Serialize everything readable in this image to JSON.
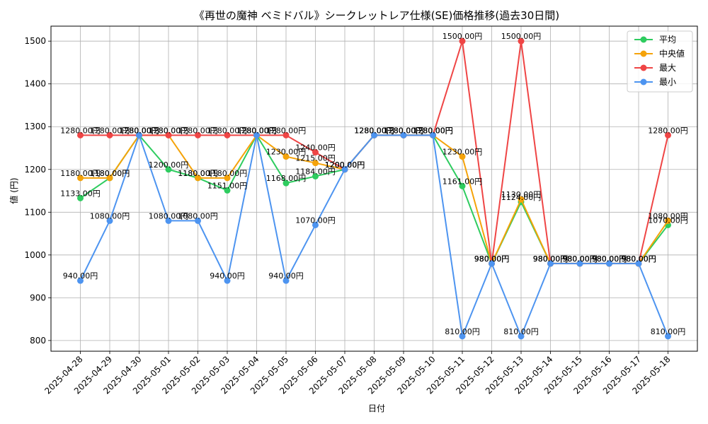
{
  "chart_data": {
    "type": "line",
    "title": "《再世の魔神 ベミドバル》シークレットレア仕様(SE)価格推移(過去30日間)",
    "xlabel": "日付",
    "ylabel": "値 (円)",
    "ylim": [
      775,
      1535
    ],
    "yticks": [
      800,
      900,
      1000,
      1100,
      1200,
      1300,
      1400,
      1500
    ],
    "grid": true,
    "legend_position": "top-right",
    "label_suffix": "円",
    "categories": [
      "2025-04-28",
      "2025-04-29",
      "2025-04-30",
      "2025-05-01",
      "2025-05-02",
      "2025-05-03",
      "2025-05-04",
      "2025-05-05",
      "2025-05-06",
      "2025-05-07",
      "2025-05-08",
      "2025-05-09",
      "2025-05-10",
      "2025-05-11",
      "2025-05-12",
      "2025-05-13",
      "2025-05-14",
      "2025-05-15",
      "2025-05-16",
      "2025-05-17",
      "2025-05-18"
    ],
    "series": [
      {
        "name": "平均",
        "color": "#2ecc5f",
        "values": [
          1133,
          1180,
          1280,
          1200,
          1180,
          1151,
          1280,
          1168,
          1184,
          1200,
          1280,
          1280,
          1280,
          1161,
          980,
          1124,
          980,
          980,
          980,
          980,
          1070
        ]
      },
      {
        "name": "中央値",
        "color": "#f5a30a",
        "values": [
          1180,
          1180,
          1280,
          1280,
          1180,
          1180,
          1280,
          1230,
          1215,
          1200,
          1280,
          1280,
          1280,
          1230,
          980,
          1130,
          980,
          980,
          980,
          980,
          1080
        ]
      },
      {
        "name": "最大",
        "color": "#ef4545",
        "values": [
          1280,
          1280,
          1280,
          1280,
          1280,
          1280,
          1280,
          1280,
          1240,
          1200,
          1280,
          1280,
          1280,
          1500,
          980,
          1500,
          980,
          980,
          980,
          980,
          1280
        ]
      },
      {
        "name": "最小",
        "color": "#4d94f0",
        "values": [
          940,
          1080,
          1280,
          1080,
          1080,
          940,
          1280,
          940,
          1070,
          1200,
          1280,
          1280,
          1280,
          810,
          980,
          810,
          980,
          980,
          980,
          980,
          810
        ]
      }
    ]
  }
}
